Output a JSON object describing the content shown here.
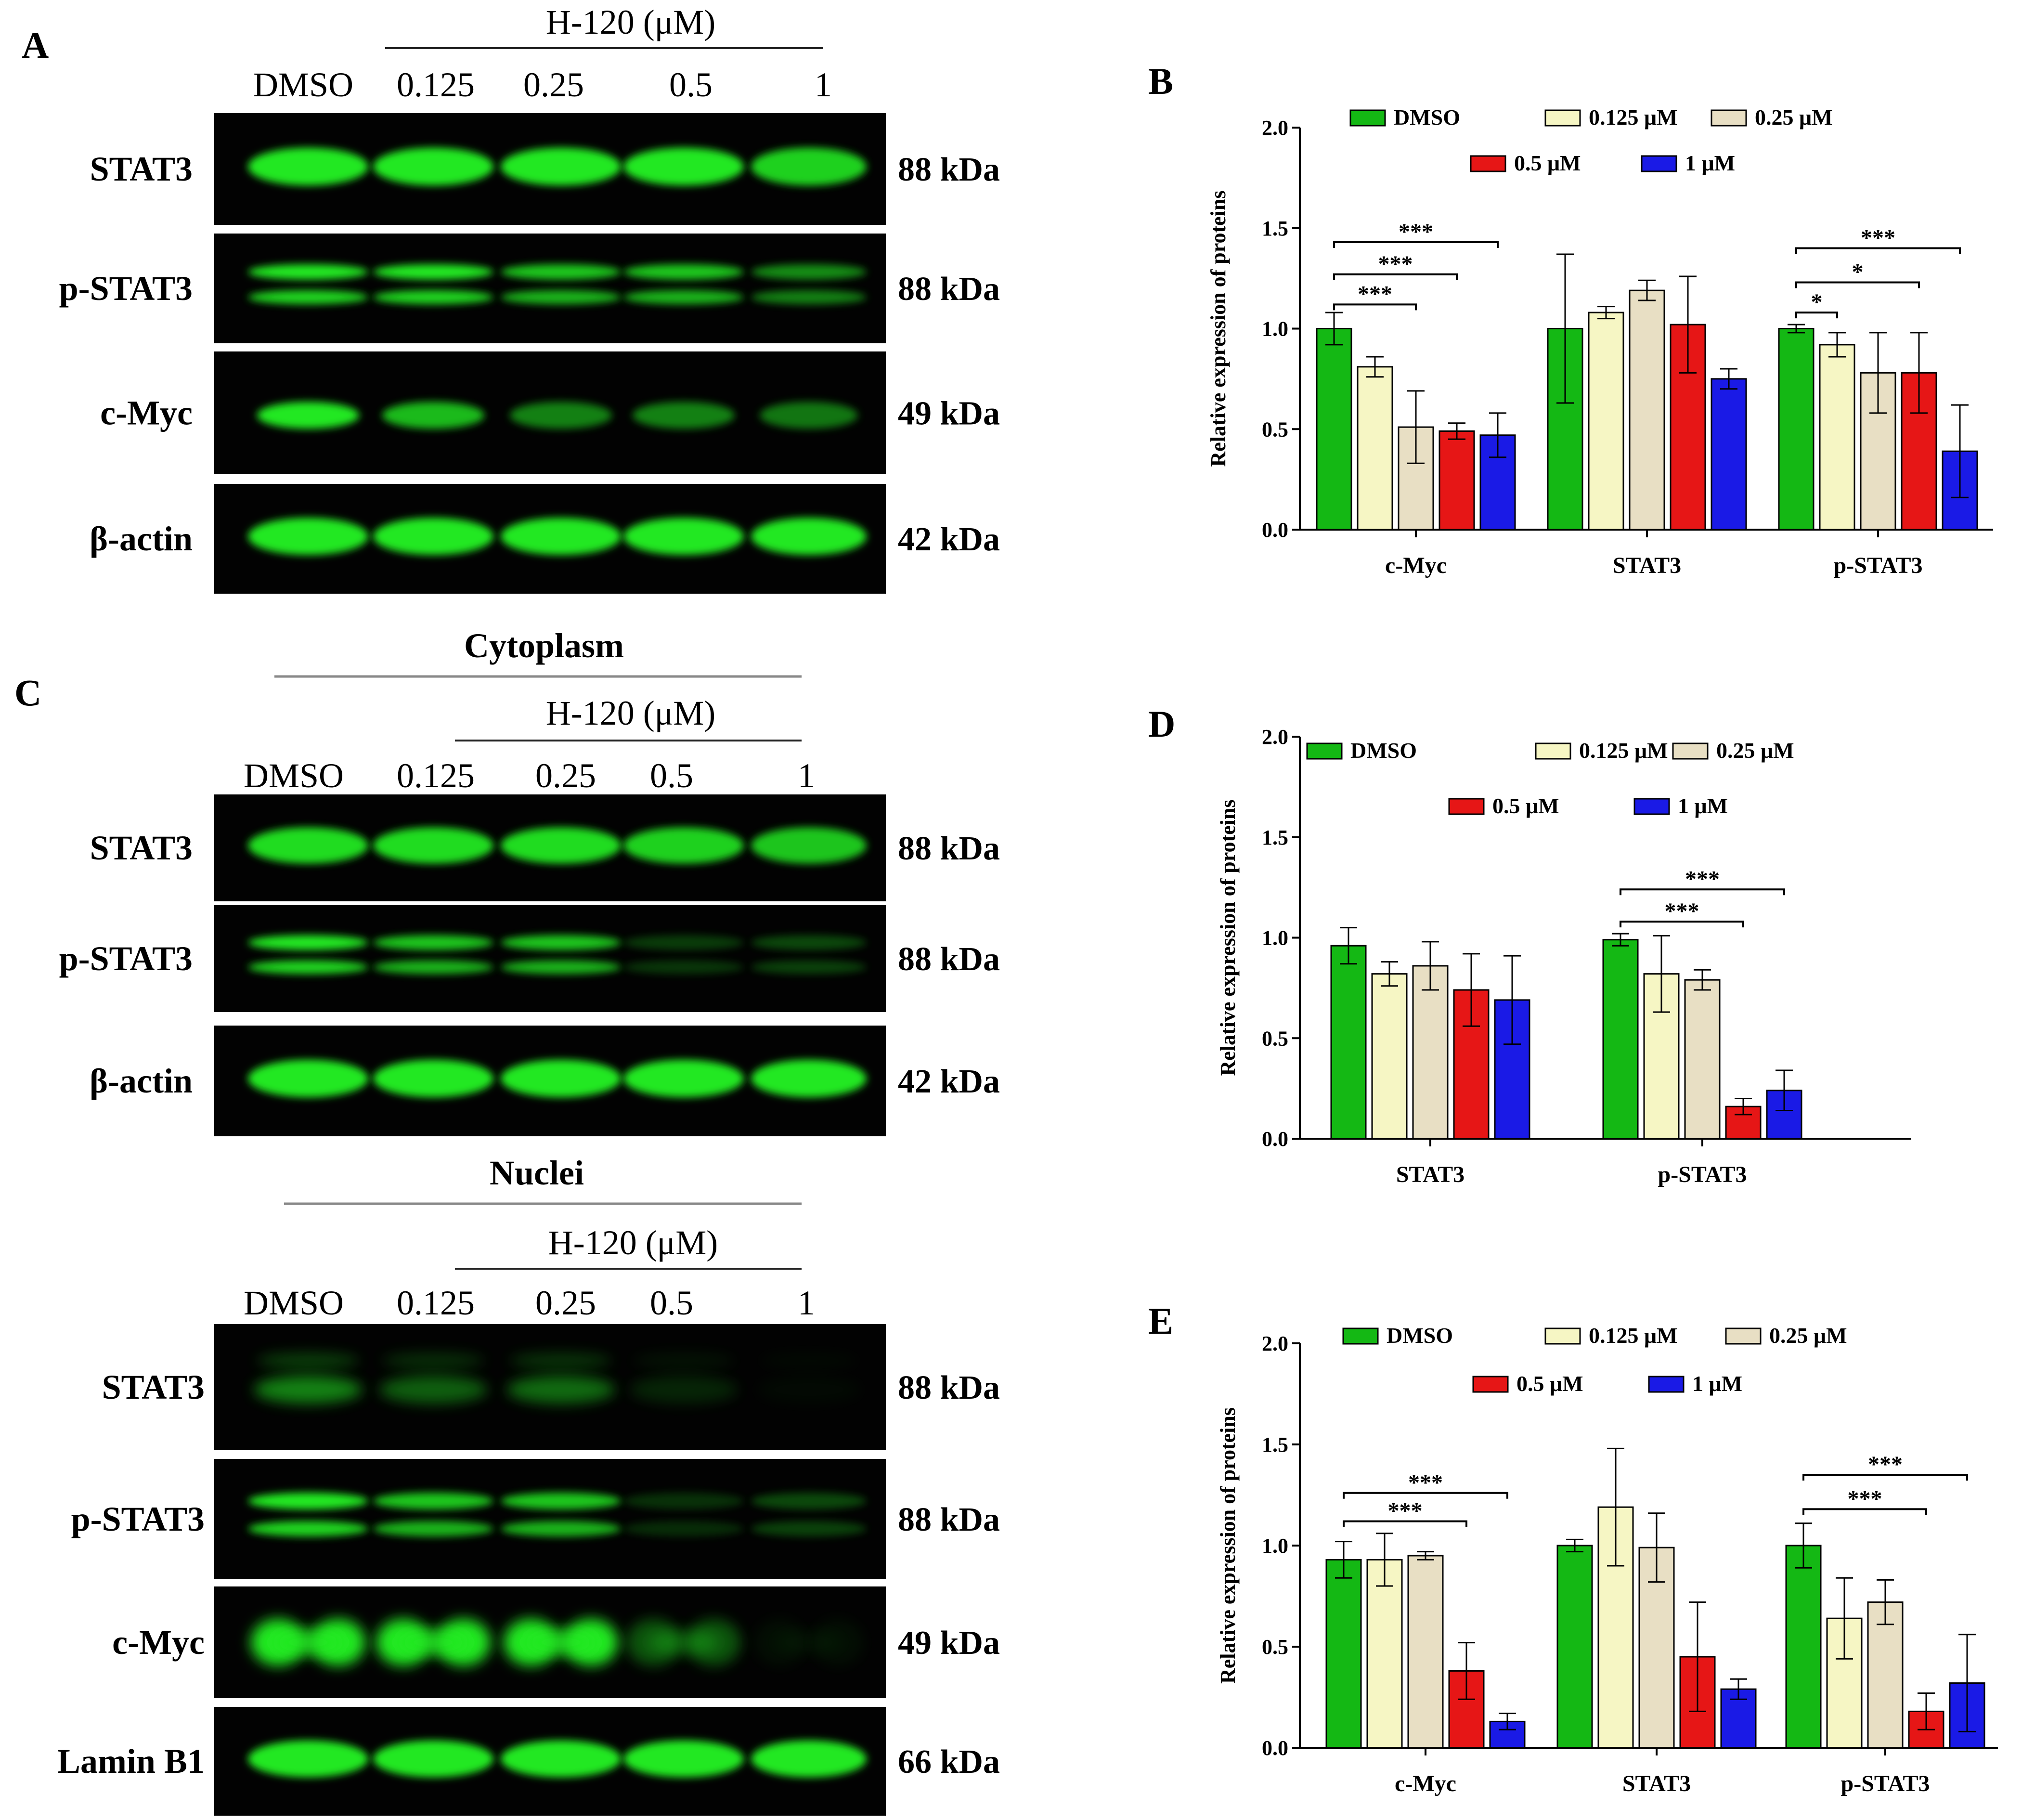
{
  "colors": {
    "DMSO": "#14b814",
    "0.125 μM": "#f6f6c4",
    "0.25 μM": "#e8dfc4",
    "0.5 μM": "#e61616",
    "1 μM": "#1a1ae6",
    "band": "#23e823",
    "blot_bg": "#020202"
  },
  "blots": {
    "A": {
      "letter": "A",
      "treatment": "H-120 (μM)",
      "lanes": [
        "DMSO",
        "0.125",
        "0.25",
        "0.5",
        "1"
      ],
      "rows": [
        {
          "protein": "STAT3",
          "kda": "88 kDa",
          "pattern": "single",
          "intensity": [
            1,
            1,
            1,
            1,
            0.9
          ]
        },
        {
          "protein": "p-STAT3",
          "kda": "88 kDa",
          "pattern": "double",
          "intensity": [
            1,
            1,
            0.85,
            0.85,
            0.6
          ]
        },
        {
          "protein": "c-Myc",
          "kda": "49 kDa",
          "pattern": "thin",
          "intensity": [
            1,
            0.8,
            0.55,
            0.55,
            0.5
          ]
        },
        {
          "protein": "β-actin",
          "kda": "42 kDa",
          "pattern": "single",
          "intensity": [
            1,
            1,
            1,
            1,
            1
          ]
        }
      ]
    },
    "C_cyto": {
      "letter": "C",
      "title": "Cytoplasm",
      "treatment": "H-120 (μM)",
      "lanes": [
        "DMSO",
        "0.125",
        "0.25",
        "0.5",
        "1"
      ],
      "rows": [
        {
          "protein": "STAT3",
          "kda": "88 kDa",
          "pattern": "single",
          "intensity": [
            0.95,
            0.95,
            0.95,
            0.9,
            0.85
          ]
        },
        {
          "protein": "p-STAT3",
          "kda": "88 kDa",
          "pattern": "double",
          "intensity": [
            1,
            0.85,
            0.85,
            0.25,
            0.3
          ]
        },
        {
          "protein": "β-actin",
          "kda": "42 kDa",
          "pattern": "single",
          "intensity": [
            1,
            1,
            1,
            1,
            1
          ]
        }
      ]
    },
    "C_nuc": {
      "title": "Nuclei",
      "treatment": "H-120 (μM)",
      "lanes": [
        "DMSO",
        "0.125",
        "0.25",
        "0.5",
        "1"
      ],
      "rows": [
        {
          "protein": "STAT3",
          "kda": "88 kDa",
          "pattern": "blurry",
          "intensity": [
            0.55,
            0.4,
            0.45,
            0.15,
            0.02
          ]
        },
        {
          "protein": "p-STAT3",
          "kda": "88 kDa",
          "pattern": "double",
          "intensity": [
            1,
            0.85,
            0.85,
            0.2,
            0.3
          ]
        },
        {
          "protein": "c-Myc",
          "kda": "49 kDa",
          "pattern": "bowtie",
          "intensity": [
            1,
            1,
            1,
            0.35,
            0.05
          ]
        },
        {
          "protein": "Lamin B1",
          "kda": "66 kDa",
          "pattern": "single",
          "intensity": [
            1,
            1,
            1,
            1,
            1
          ]
        }
      ]
    }
  },
  "chart_data": [
    {
      "panel": "B",
      "type": "bar",
      "title": "",
      "xlabel": "",
      "ylabel": "Relative expression of proteins",
      "ylim": [
        0,
        2.0
      ],
      "yticks": [
        "0.0",
        "0.5",
        "1.0",
        "1.5",
        "2.0"
      ],
      "categories": [
        "c-Myc",
        "STAT3",
        "p-STAT3"
      ],
      "series": [
        {
          "name": "DMSO",
          "values": [
            1.0,
            1.0,
            1.0
          ],
          "errors": [
            0.08,
            0.37,
            0.02
          ]
        },
        {
          "name": "0.125 μM",
          "values": [
            0.81,
            1.08,
            0.92
          ],
          "errors": [
            0.05,
            0.03,
            0.06
          ]
        },
        {
          "name": "0.25 μM",
          "values": [
            0.51,
            1.19,
            0.78
          ],
          "errors": [
            0.18,
            0.05,
            0.2
          ]
        },
        {
          "name": "0.5 μM",
          "values": [
            0.49,
            1.02,
            0.78
          ],
          "errors": [
            0.04,
            0.24,
            0.2
          ]
        },
        {
          "name": "1 μM",
          "values": [
            0.47,
            0.75,
            0.39
          ],
          "errors": [
            0.11,
            0.05,
            0.23
          ]
        }
      ],
      "legend_rows": [
        [
          "DMSO",
          "0.125 μM",
          "0.25 μM"
        ],
        [
          "0.5 μM",
          "1 μM"
        ]
      ],
      "annotations": [
        {
          "category": 0,
          "from": 0,
          "to": 4,
          "y": 1.43,
          "label": "***"
        },
        {
          "category": 0,
          "from": 0,
          "to": 3,
          "y": 1.27,
          "label": "***"
        },
        {
          "category": 0,
          "from": 0,
          "to": 2,
          "y": 1.12,
          "label": "***"
        },
        {
          "category": 2,
          "from": 0,
          "to": 4,
          "y": 1.4,
          "label": "***"
        },
        {
          "category": 2,
          "from": 0,
          "to": 3,
          "y": 1.23,
          "label": "*"
        },
        {
          "category": 2,
          "from": 0,
          "to": 1,
          "y": 1.08,
          "label": "*"
        }
      ]
    },
    {
      "panel": "D",
      "type": "bar",
      "title": "",
      "xlabel": "",
      "ylabel": "Relative expression of proteins",
      "ylim": [
        0,
        2.0
      ],
      "yticks": [
        "0.0",
        "0.5",
        "1.0",
        "1.5",
        "2.0"
      ],
      "categories": [
        "STAT3",
        "p-STAT3"
      ],
      "series": [
        {
          "name": "DMSO",
          "values": [
            0.96,
            0.99
          ],
          "errors": [
            0.09,
            0.03
          ]
        },
        {
          "name": "0.125 μM",
          "values": [
            0.82,
            0.82
          ],
          "errors": [
            0.06,
            0.19
          ]
        },
        {
          "name": "0.25 μM",
          "values": [
            0.86,
            0.79
          ],
          "errors": [
            0.12,
            0.05
          ]
        },
        {
          "name": "0.5 μM",
          "values": [
            0.74,
            0.16
          ],
          "errors": [
            0.18,
            0.04
          ]
        },
        {
          "name": "1 μM",
          "values": [
            0.69,
            0.24
          ],
          "errors": [
            0.22,
            0.1
          ]
        }
      ],
      "legend_rows": [
        [
          "DMSO",
          "0.125 μM",
          "0.25 μM"
        ],
        [
          "0.5 μM",
          "1 μM"
        ]
      ],
      "annotations": [
        {
          "category": 1,
          "from": 0,
          "to": 4,
          "y": 1.24,
          "label": "***"
        },
        {
          "category": 1,
          "from": 0,
          "to": 3,
          "y": 1.08,
          "label": "***"
        }
      ]
    },
    {
      "panel": "E",
      "type": "bar",
      "title": "",
      "xlabel": "",
      "ylabel": "Relative expression of proteins",
      "ylim": [
        0,
        2.0
      ],
      "yticks": [
        "0.0",
        "0.5",
        "1.0",
        "1.5",
        "2.0"
      ],
      "categories": [
        "c-Myc",
        "STAT3",
        "p-STAT3"
      ],
      "series": [
        {
          "name": "DMSO",
          "values": [
            0.93,
            1.0,
            1.0
          ],
          "errors": [
            0.09,
            0.03,
            0.11
          ]
        },
        {
          "name": "0.125 μM",
          "values": [
            0.93,
            1.19,
            0.64
          ],
          "errors": [
            0.13,
            0.29,
            0.2
          ]
        },
        {
          "name": "0.25 μM",
          "values": [
            0.95,
            0.99,
            0.72
          ],
          "errors": [
            0.02,
            0.17,
            0.11
          ]
        },
        {
          "name": "0.5 μM",
          "values": [
            0.38,
            0.45,
            0.18
          ],
          "errors": [
            0.14,
            0.27,
            0.09
          ]
        },
        {
          "name": "1 μM",
          "values": [
            0.13,
            0.29,
            0.32
          ],
          "errors": [
            0.04,
            0.05,
            0.24
          ]
        }
      ],
      "legend_rows": [
        [
          "DMSO",
          "0.125 μM",
          "0.25 μM"
        ],
        [
          "0.5 μM",
          "1 μM"
        ]
      ],
      "annotations": [
        {
          "category": 0,
          "from": 0,
          "to": 4,
          "y": 1.26,
          "label": "***"
        },
        {
          "category": 0,
          "from": 0,
          "to": 3,
          "y": 1.12,
          "label": "***"
        },
        {
          "category": 2,
          "from": 0,
          "to": 4,
          "y": 1.35,
          "label": "***"
        },
        {
          "category": 2,
          "from": 0,
          "to": 3,
          "y": 1.18,
          "label": "***"
        }
      ]
    }
  ]
}
